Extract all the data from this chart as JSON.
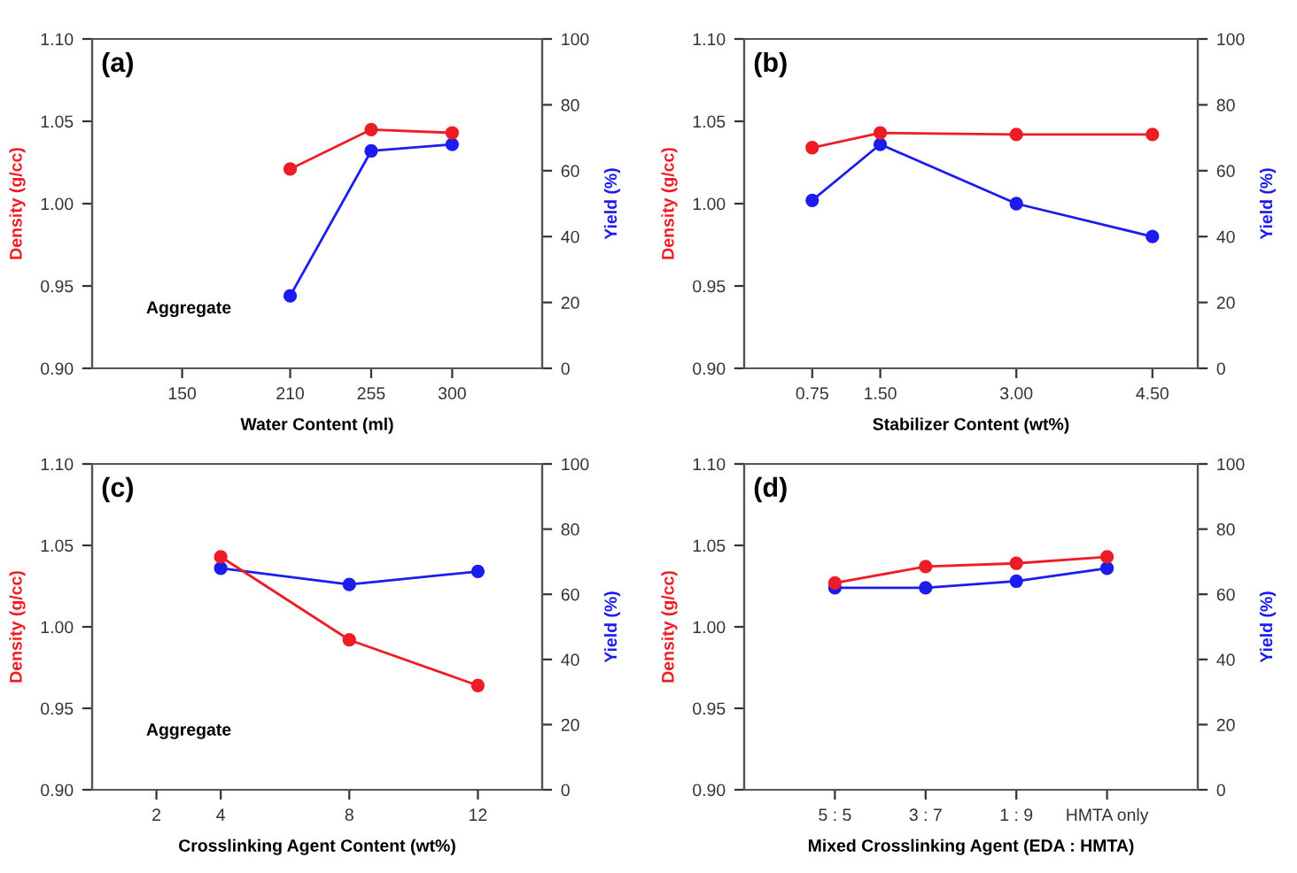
{
  "chart_data": [
    {
      "type": "line",
      "title": "(a)",
      "xlabel": "Water Content (ml)",
      "ylabel": "Density (g/cc)",
      "y2label": "Yield (%)",
      "annotations": [
        "Aggregate"
      ],
      "x": [
        210,
        255,
        300
      ],
      "xlim": [
        100,
        350
      ],
      "xticks": [
        150,
        210,
        255,
        300
      ],
      "ylim": [
        0.9,
        1.1
      ],
      "yticks": [
        {
          "value": 0.9,
          "label": "0.90"
        },
        {
          "value": 0.95,
          "label": "0.95"
        },
        {
          "value": 1.0,
          "label": "1.00"
        },
        {
          "value": 1.05,
          "label": "1.05"
        },
        {
          "value": 1.1,
          "label": "1.10"
        }
      ],
      "y2lim": [
        0,
        100
      ],
      "y2ticks": [
        0,
        20,
        40,
        60,
        80,
        100
      ],
      "marker": "circle",
      "grid": false,
      "legend": false,
      "series": [
        {
          "color": "#ee1c25",
          "values": [
            1.021,
            1.045,
            1.043
          ]
        },
        {
          "color": "#1c1cee",
          "axis": "y2",
          "values": [
            22,
            66,
            68
          ]
        }
      ]
    },
    {
      "type": "line",
      "title": "(b)",
      "xlabel": "Stabilizer Content (wt%)",
      "ylabel": "Density (g/cc)",
      "y2label": "Yield (%)",
      "x": [
        0.75,
        1.5,
        3.0,
        4.5
      ],
      "xlim": [
        0,
        5
      ],
      "xticks": [
        {
          "value": 0.75,
          "label": "0.75"
        },
        {
          "value": 1.5,
          "label": "1.50"
        },
        {
          "value": 3.0,
          "label": "3.00"
        },
        {
          "value": 4.5,
          "label": "4.50"
        }
      ],
      "ylim": [
        0.9,
        1.1
      ],
      "yticks": [
        {
          "value": 0.9,
          "label": "0.90"
        },
        {
          "value": 0.95,
          "label": "0.95"
        },
        {
          "value": 1.0,
          "label": "1.00"
        },
        {
          "value": 1.05,
          "label": "1.05"
        },
        {
          "value": 1.1,
          "label": "1.10"
        }
      ],
      "y2lim": [
        0,
        100
      ],
      "y2ticks": [
        0,
        20,
        40,
        60,
        80,
        100
      ],
      "marker": "circle",
      "grid": false,
      "legend": false,
      "series": [
        {
          "color": "#ee1c25",
          "values": [
            1.034,
            1.043,
            1.042,
            1.042
          ]
        },
        {
          "color": "#1c1cee",
          "axis": "y2",
          "values": [
            51,
            68,
            50,
            40
          ]
        }
      ]
    },
    {
      "type": "line",
      "title": "(c)",
      "xlabel": "Crosslinking Agent Content (wt%)",
      "ylabel": "Density (g/cc)",
      "y2label": "Yield (%)",
      "annotations": [
        "Aggregate"
      ],
      "x": [
        4,
        8,
        12
      ],
      "xlim": [
        0,
        14
      ],
      "xticks": [
        2,
        4,
        8,
        12
      ],
      "ylim": [
        0.9,
        1.1
      ],
      "yticks": [
        {
          "value": 0.9,
          "label": "0.90"
        },
        {
          "value": 0.95,
          "label": "0.95"
        },
        {
          "value": 1.0,
          "label": "1.00"
        },
        {
          "value": 1.05,
          "label": "1.05"
        },
        {
          "value": 1.1,
          "label": "1.10"
        }
      ],
      "y2lim": [
        0,
        100
      ],
      "y2ticks": [
        0,
        20,
        40,
        60,
        80,
        100
      ],
      "marker": "circle",
      "grid": false,
      "legend": false,
      "series": [
        {
          "color": "#ee1c25",
          "values": [
            1.043,
            0.992,
            0.964
          ]
        },
        {
          "color": "#1c1cee",
          "axis": "y2",
          "values": [
            68,
            63,
            67
          ]
        }
      ]
    },
    {
      "type": "line",
      "title": "(d)",
      "xlabel": "Mixed Crosslinking Agent (EDA : HMTA)",
      "ylabel": "Density (g/cc)",
      "y2label": "Yield (%)",
      "categories": [
        "5 : 5",
        "3 : 7",
        "1 : 9",
        "HMTA only"
      ],
      "ylim": [
        0.9,
        1.1
      ],
      "yticks": [
        {
          "value": 0.9,
          "label": "0.90"
        },
        {
          "value": 0.95,
          "label": "0.95"
        },
        {
          "value": 1.0,
          "label": "1.00"
        },
        {
          "value": 1.05,
          "label": "1.05"
        },
        {
          "value": 1.1,
          "label": "1.10"
        }
      ],
      "y2lim": [
        0,
        100
      ],
      "y2ticks": [
        0,
        20,
        40,
        60,
        80,
        100
      ],
      "marker": "circle",
      "grid": false,
      "legend": false,
      "series": [
        {
          "color": "#ee1c25",
          "values": [
            1.027,
            1.037,
            1.039,
            1.043
          ]
        },
        {
          "color": "#1c1cee",
          "axis": "y2",
          "values": [
            62,
            62,
            64,
            68
          ]
        }
      ]
    }
  ]
}
